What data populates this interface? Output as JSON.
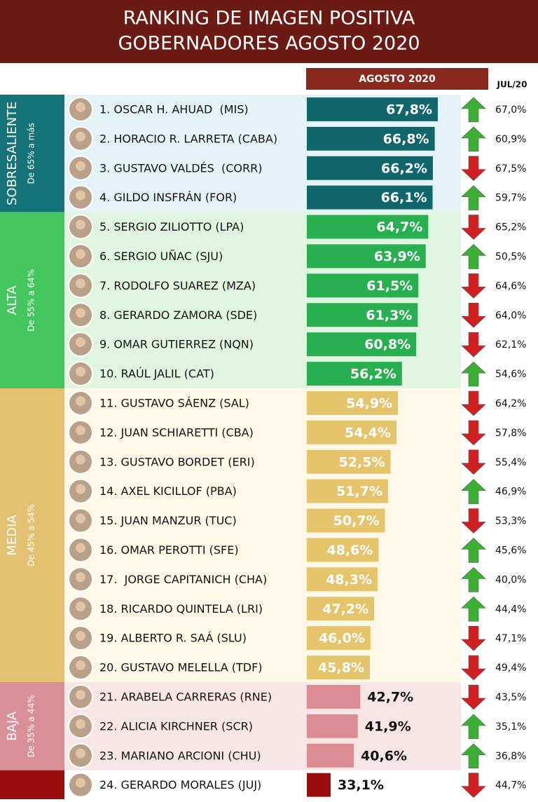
{
  "chart_data": {
    "type": "bar",
    "title": "RANKING DE IMAGEN POSITIVA",
    "subtitle": "GOBERNADORES AGOSTO 2020",
    "series_names": [
      "AGOSTO 2020",
      "JUL/20"
    ],
    "up_color": "#3cb035",
    "down_color": "#d21f1f",
    "groups": [
      {
        "label": "SOBRESALIENTE",
        "range": "De 65% a más",
        "band": "#137377",
        "bar": "#10666b",
        "background": "#e3f3f7",
        "label_outside": false,
        "categories": [
          "1. OSCAR H. AHUAD  (MIS)",
          "2. HORACIO R. LARRETA (CABA)",
          "3. GUSTAVO VALDÉS  (CORR)",
          "4. GILDO INSFRÁN (FOR)"
        ],
        "values": [
          67.8,
          66.8,
          66.2,
          66.1
        ],
        "value_labels": [
          "67,8%",
          "66,8%",
          "66,2%",
          "66,1%"
        ],
        "previous": [
          67.0,
          60.9,
          67.5,
          59.7
        ],
        "previous_labels": [
          "67,0%",
          "60,9%",
          "67,5%",
          "59,7%"
        ]
      },
      {
        "label": "ALTA",
        "range": "De 55% a 64%",
        "band": "#44c65e",
        "bar": "#28b050",
        "background": "#e0f6e0",
        "label_outside": false,
        "categories": [
          "5. SERGIO ZILIOTTO (LPA)",
          "6. SERGIO UÑAC (SJU)",
          "7. RODOLFO SUAREZ (MZA)",
          "8. GERARDO ZAMORA (SDE)",
          "9. OMAR GUTIERREZ (NQN)",
          "10. RAÚL JALIL (CAT)"
        ],
        "values": [
          64.7,
          63.9,
          61.5,
          61.3,
          60.8,
          56.2
        ],
        "value_labels": [
          "64,7%",
          "63,9%",
          "61,5%",
          "61,3%",
          "60,8%",
          "56,2%"
        ],
        "previous": [
          65.2,
          50.5,
          64.6,
          64.0,
          62.1,
          54.6
        ],
        "previous_labels": [
          "65,2%",
          "50,5%",
          "64,6%",
          "64,0%",
          "62,1%",
          "54,6%"
        ]
      },
      {
        "label": "MEDIA",
        "range": "De 45% a 54%",
        "band": "#e2c270",
        "bar": "#e6c46c",
        "background": "#fdf9e6",
        "label_outside": false,
        "categories": [
          "11. GUSTAVO SÁENZ (SAL)",
          "12. JUAN SCHIARETTI (CBA)",
          "13. GUSTAVO BORDET (ERI)",
          "14. AXEL KICILLOF (PBA)",
          "15. JUAN MANZUR (TUC)",
          "16. OMAR PEROTTI (SFE)",
          "17.  JORGE CAPITANICH (CHA)",
          "18. RICARDO QUINTELA (LRI)",
          "19. ALBERTO R. SAÁ (SLU)",
          "20. GUSTAVO MELELLA (TDF)"
        ],
        "values": [
          54.9,
          54.4,
          52.5,
          51.7,
          50.7,
          48.6,
          48.3,
          47.2,
          46.0,
          45.8
        ],
        "value_labels": [
          "54,9%",
          "54,4%",
          "52,5%",
          "51,7%",
          "50,7%",
          "48,6%",
          "48,3%",
          "47,2%",
          "46,0%",
          "45,8%"
        ],
        "previous": [
          64.2,
          57.8,
          55.4,
          46.9,
          53.3,
          45.6,
          40.0,
          44.4,
          47.1,
          49.4
        ],
        "previous_labels": [
          "64,2%",
          "57,8%",
          "55,4%",
          "46,9%",
          "53,3%",
          "45,6%",
          "40,0%",
          "44,4%",
          "47,1%",
          "49,4%"
        ]
      },
      {
        "label": "BAJA",
        "range": "De 35% a 44%",
        "band": "#d98f96",
        "bar": "#dc8d94",
        "background": "#f8e6e6",
        "label_outside": true,
        "categories": [
          "21. ARABELA CARRERAS (RNE)",
          "22. ALICIA KIRCHNER (SCR)",
          "23. MARIANO ARCIONI (CHU)"
        ],
        "values": [
          42.7,
          41.9,
          40.6
        ],
        "value_labels": [
          "42,7%",
          "41,9%",
          "40,6%"
        ],
        "previous": [
          43.5,
          35.1,
          36.8
        ],
        "previous_labels": [
          "43,5%",
          "35,1%",
          "36,8%"
        ]
      },
      {
        "band": "#9b0c0c",
        "bar": "#9b0c0c",
        "background": "#ffffff",
        "label_outside": true,
        "categories": [
          "24. GERARDO MORALES (JUJ)"
        ],
        "values": [
          33.1
        ],
        "value_labels": [
          "33,1%"
        ],
        "previous": [
          44.7
        ],
        "previous_labels": [
          "44,7%"
        ]
      }
    ]
  }
}
